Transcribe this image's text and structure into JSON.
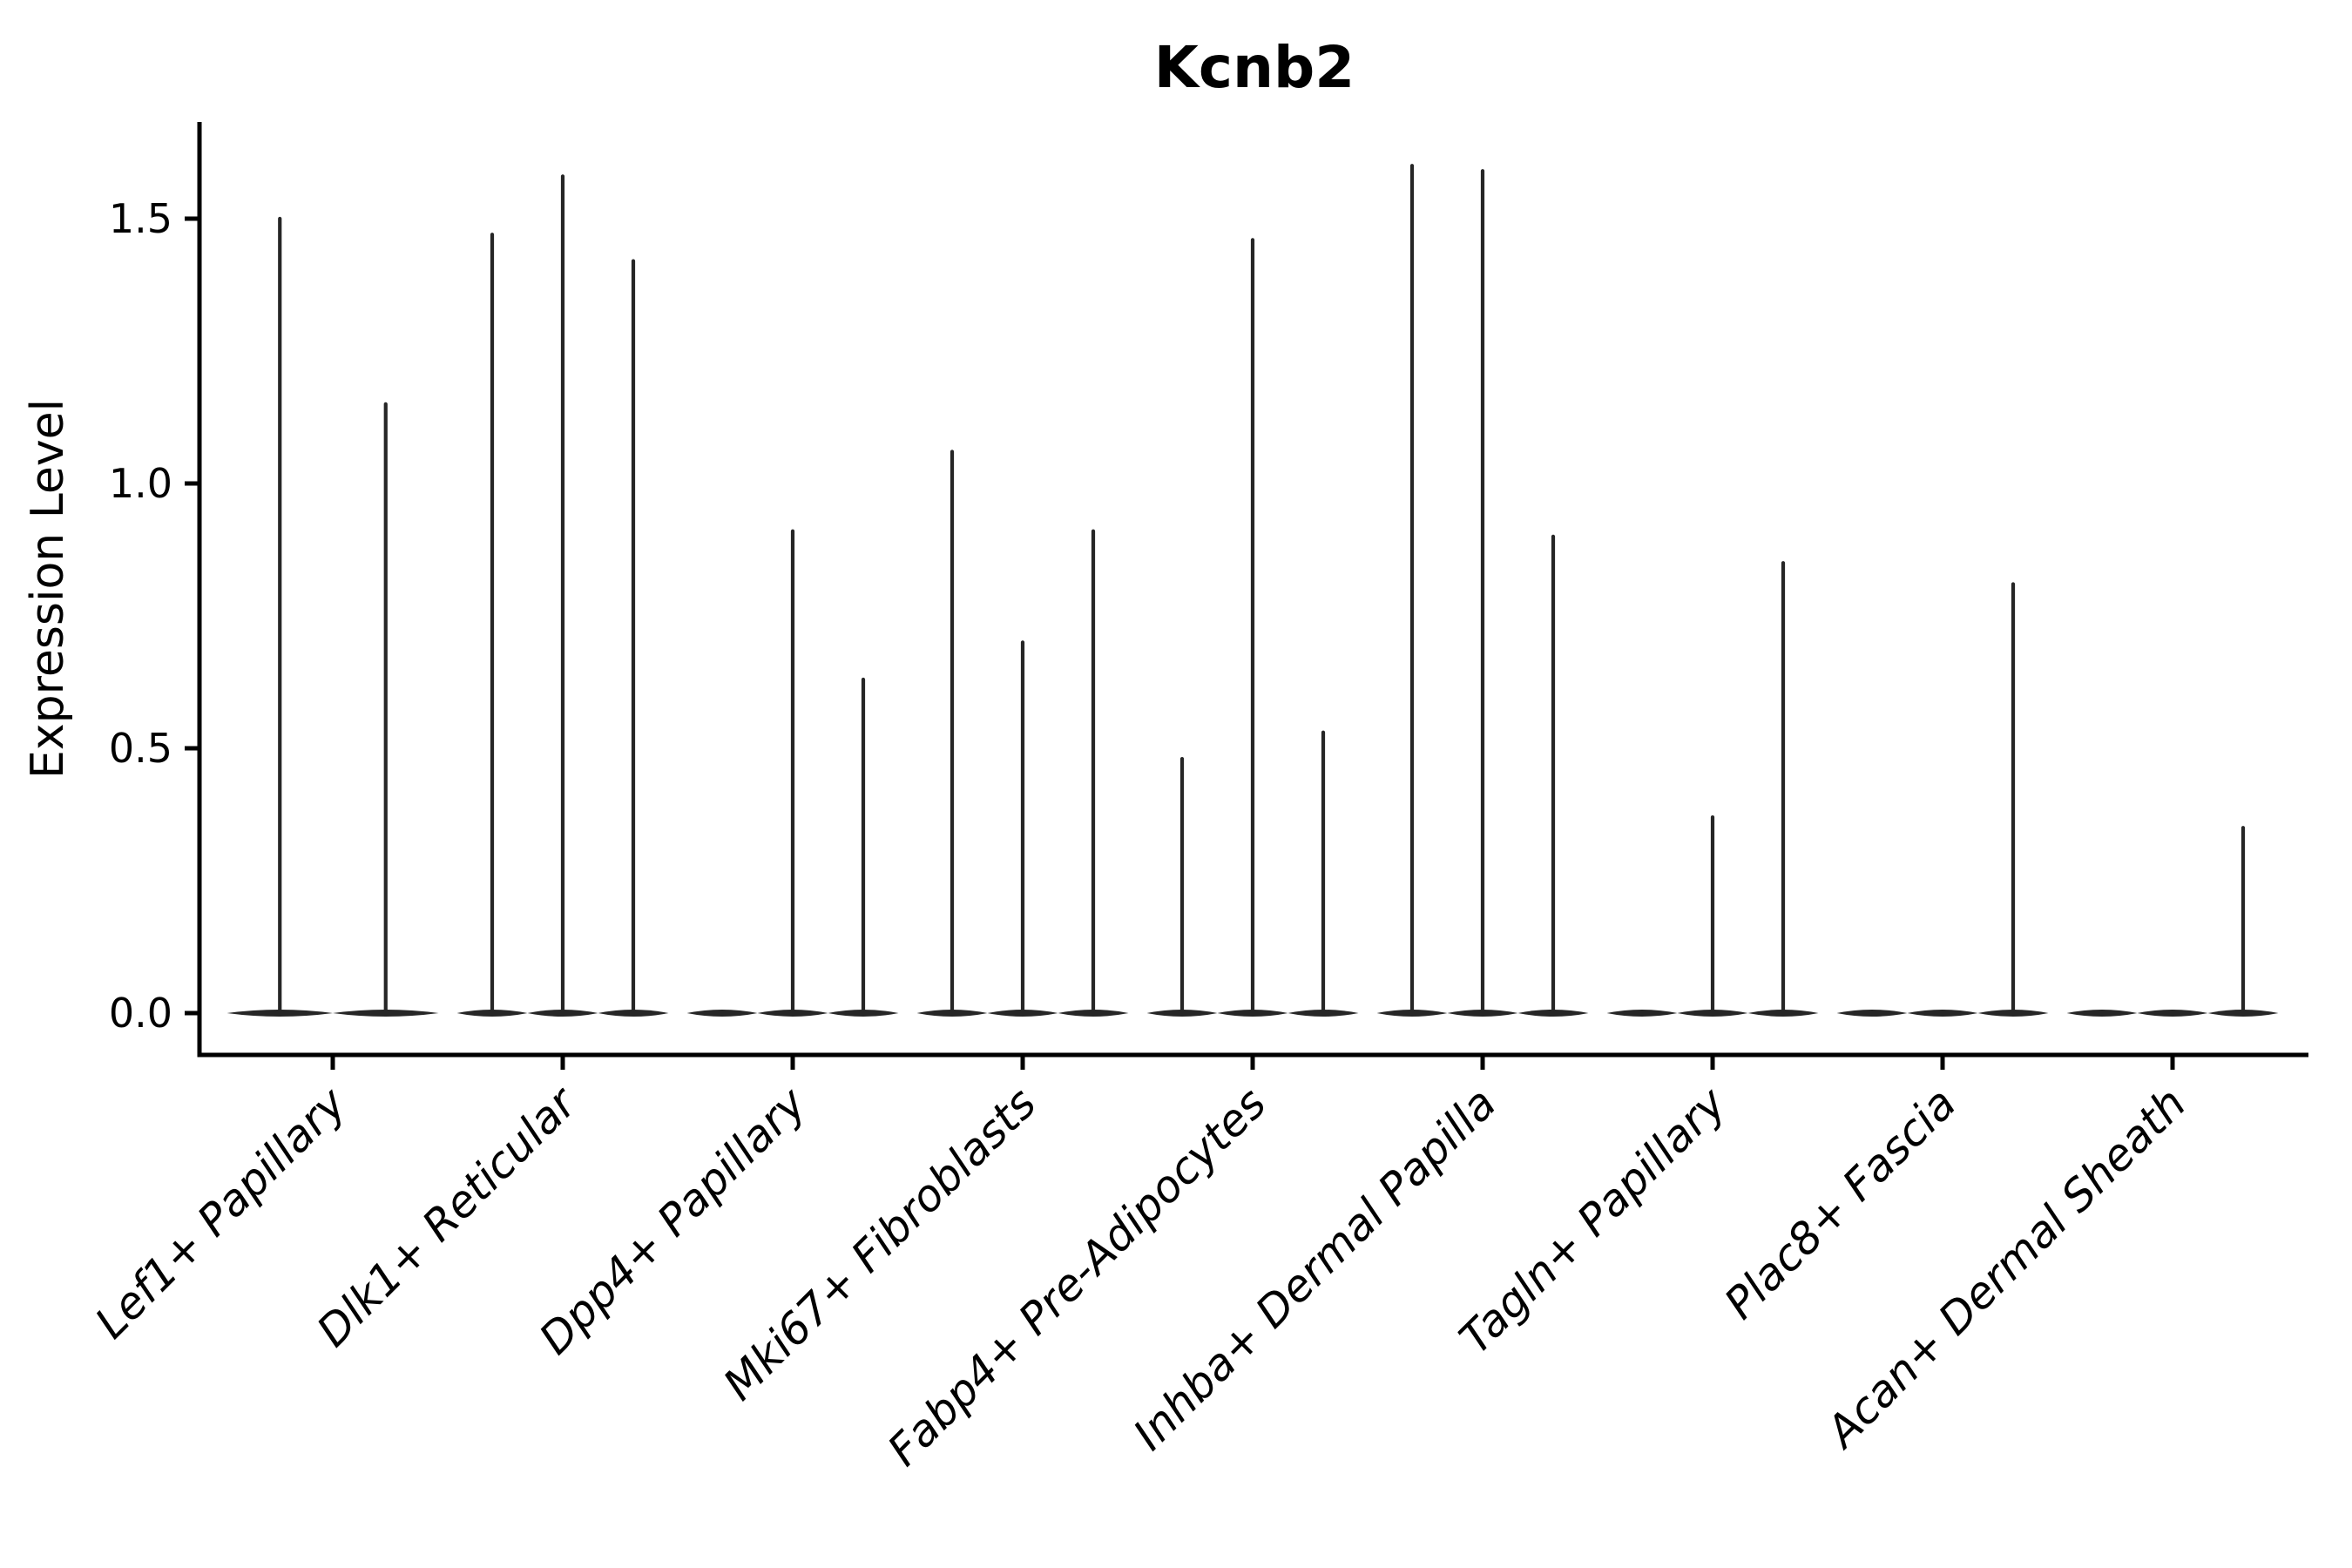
{
  "figure": {
    "title": "Kcnb2",
    "background_color": "#ffffff"
  },
  "chart_data": {
    "type": "violin",
    "title": "Kcnb2",
    "xlabel": "",
    "ylabel": "Expression Level",
    "ylim": [
      -0.08,
      1.68
    ],
    "yticks": [
      0.0,
      0.5,
      1.0,
      1.5
    ],
    "ytick_labels": [
      "0.0",
      "0.5",
      "1.0",
      "1.5"
    ],
    "grid": false,
    "legend_position": "none",
    "x_tick_rotation_deg": 45,
    "description": "Each category holds 2-3 near-flat violins (expression concentrated at 0) with a thin tail spike rising to the maximum expression value; violins with max 0 are flat lines only.",
    "categories": [
      {
        "label": "Lef1+ Papillary",
        "violin_maxima": [
          1.5,
          1.15
        ]
      },
      {
        "label": "Dlk1+ Reticular",
        "violin_maxima": [
          1.47,
          1.58,
          1.42
        ]
      },
      {
        "label": "Dpp4+ Papillary",
        "violin_maxima": [
          0.0,
          0.91,
          0.63
        ]
      },
      {
        "label": "Mki67+ Fibroblasts",
        "violin_maxima": [
          1.06,
          0.7,
          0.91
        ]
      },
      {
        "label": "Fabp4+ Pre-Adipocytes",
        "violin_maxima": [
          0.48,
          1.46,
          0.53
        ]
      },
      {
        "label": "Inhba+ Dermal Papilla",
        "violin_maxima": [
          1.6,
          1.59,
          0.9
        ]
      },
      {
        "label": "Tagln+ Papillary",
        "violin_maxima": [
          0.0,
          0.37,
          0.85
        ]
      },
      {
        "label": "Plac8+ Fascia",
        "violin_maxima": [
          0.0,
          0.0,
          0.81
        ]
      },
      {
        "label": "Acan+ Dermal Sheath",
        "violin_maxima": [
          0.0,
          0.0,
          0.35
        ]
      }
    ],
    "style": {
      "violin_color": "#262626",
      "axis_color": "#000000",
      "text_color": "#000000"
    }
  }
}
